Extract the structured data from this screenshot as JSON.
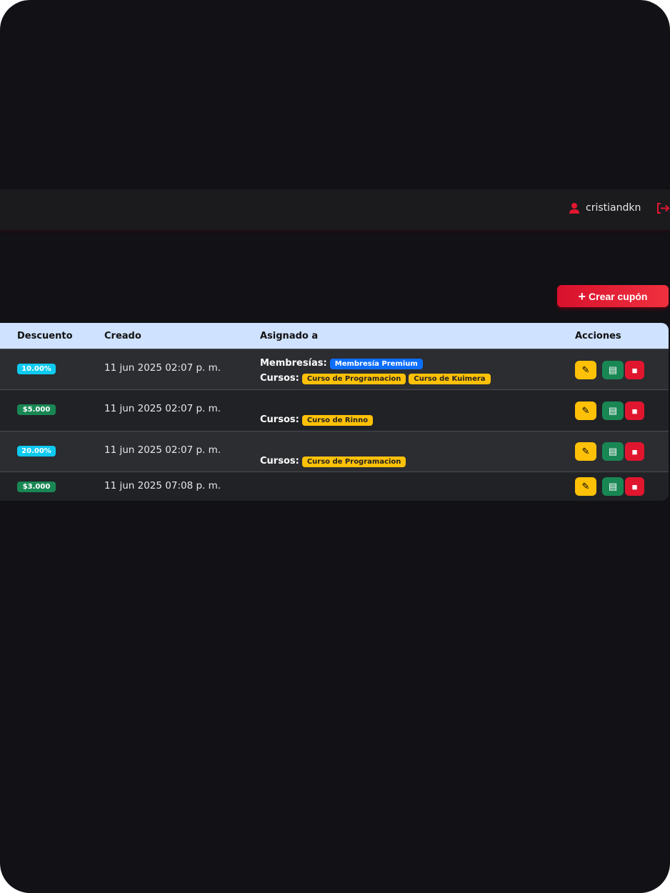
{
  "header": {
    "username": "cristiandkn",
    "user_icon": "user-icon",
    "logout_icon": "logout-icon"
  },
  "toolbar": {
    "create_label": "Crear cupón"
  },
  "colors": {
    "accent": "#e0162f",
    "percent": "#0dcaf0",
    "fixed": "#198754",
    "course": "#ffc107",
    "membership": "#0d6efd",
    "header": "#cfe2ff"
  },
  "table": {
    "columns": [
      "Descuento",
      "Creado",
      "Asignado a",
      "Acciones"
    ],
    "rows": [
      {
        "discount": "10.00%",
        "type": "percent",
        "created": "11 jun 2025 02:07 p. m.",
        "memberships_label": "Membresías:",
        "memberships": [
          "Membresía Premium"
        ],
        "courses_label": "Cursos:",
        "courses": [
          "Curso de Programacion",
          "Curso de Kuimera"
        ]
      },
      {
        "discount": "$5.000",
        "type": "fixed",
        "created": "11 jun 2025 02:07 p. m.",
        "courses_label": "Cursos:",
        "courses": [
          "Curso de Rinno"
        ]
      },
      {
        "discount": "20.00%",
        "type": "percent",
        "created": "11 jun 2025 02:07 p. m.",
        "courses_label": "Cursos:",
        "courses": [
          "Curso de Programacion"
        ]
      },
      {
        "discount": "$3.000",
        "type": "fixed",
        "created": "11 jun 2025 07:08 p. m."
      }
    ]
  }
}
